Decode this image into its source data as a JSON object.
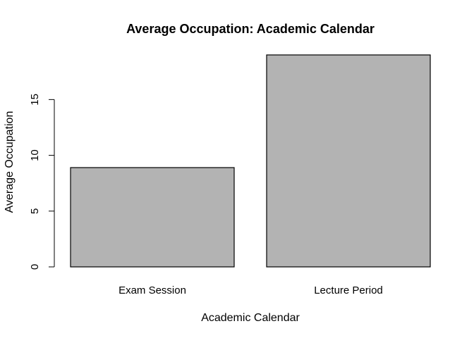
{
  "chart_data": {
    "type": "bar",
    "title": "Average Occupation: Academic Calendar",
    "xlabel": "Academic Calendar",
    "ylabel": "Average Occupation",
    "categories": [
      "Exam Session",
      "Lecture Period"
    ],
    "values": [
      8.9,
      19.0
    ],
    "yticks": [
      0,
      5,
      10,
      15
    ],
    "ylim": [
      0,
      19.0
    ],
    "bar_color": "#b3b3b3",
    "grid": false,
    "legend": false
  }
}
